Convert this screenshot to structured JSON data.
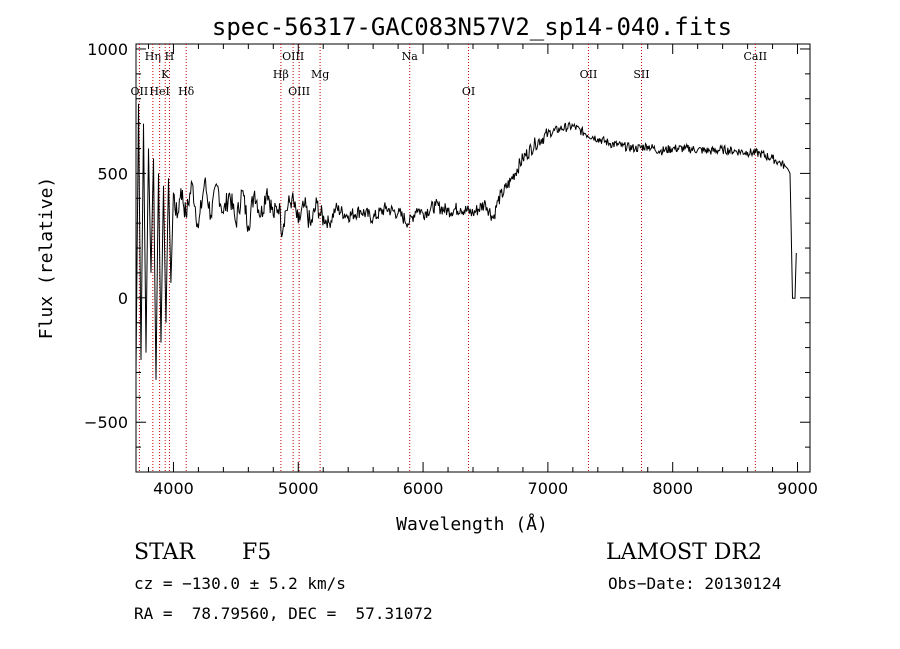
{
  "chart_data": {
    "type": "line",
    "title": "spec-56317-GAC083N57V2_sp14-040.fits",
    "xlabel": "Wavelength (Å)",
    "ylabel": "Flux (relative)",
    "xlim": [
      3700,
      9100
    ],
    "ylim": [
      -700,
      1020
    ],
    "xticks": [
      4000,
      5000,
      6000,
      7000,
      8000,
      9000
    ],
    "xtick_labels": [
      "4000",
      "5000",
      "6000",
      "7000",
      "8000",
      "9000"
    ],
    "yticks": [
      -500,
      0,
      500,
      1000
    ],
    "ytick_labels": [
      "−500",
      "0",
      "500",
      "1000"
    ],
    "series": [
      {
        "x": [
          3700,
          3720,
          3740,
          3760,
          3780,
          3800,
          3820,
          3840,
          3860,
          3880,
          3900,
          3920,
          3940,
          3960,
          3980,
          4000,
          4030,
          4060,
          4100,
          4150,
          4200,
          4250,
          4300,
          4350,
          4400,
          4450,
          4500,
          4550,
          4600,
          4650,
          4700,
          4750,
          4800,
          4850,
          4861,
          4900,
          4950,
          5000,
          5050,
          5100,
          5150,
          5180,
          5250,
          5300,
          5400,
          5500,
          5600,
          5700,
          5800,
          5890,
          5950,
          6000,
          6100,
          6200,
          6300,
          6400,
          6500,
          6563,
          6600,
          6700,
          6800,
          6900,
          7000,
          7100,
          7200,
          7300,
          7400,
          7500,
          7600,
          7700,
          7800,
          7900,
          8000,
          8100,
          8200,
          8300,
          8400,
          8500,
          8600,
          8700,
          8800,
          8850,
          8900,
          8920,
          8940,
          8960,
          8980,
          8990
        ],
        "values": [
          -300,
          780,
          -250,
          700,
          -220,
          600,
          100,
          560,
          -330,
          500,
          -180,
          450,
          -100,
          480,
          60,
          420,
          320,
          440,
          330,
          460,
          280,
          470,
          330,
          450,
          340,
          420,
          300,
          430,
          290,
          430,
          330,
          440,
          330,
          380,
          270,
          350,
          400,
          300,
          370,
          290,
          380,
          330,
          300,
          360,
          330,
          350,
          320,
          360,
          340,
          300,
          360,
          340,
          370,
          350,
          360,
          340,
          380,
          320,
          390,
          470,
          560,
          620,
          660,
          680,
          690,
          660,
          640,
          620,
          610,
          600,
          610,
          590,
          600,
          600,
          595,
          590,
          595,
          590,
          585,
          580,
          560,
          545,
          530,
          520,
          500,
          -2,
          -2,
          180
        ]
      }
    ],
    "lines": [
      {
        "label": "OII",
        "x": 3727,
        "row": 3
      },
      {
        "label": "Hη",
        "x": 3835,
        "row": 1
      },
      {
        "label": "HeI",
        "x": 3889,
        "row": 3
      },
      {
        "label": "K",
        "x": 3934,
        "row": 2
      },
      {
        "label": "H",
        "x": 3968,
        "row": 1
      },
      {
        "label": "Hδ",
        "x": 4102,
        "row": 3
      },
      {
        "label": "Hβ",
        "x": 4861,
        "row": 2
      },
      {
        "label": "OIII",
        "x": 4959,
        "row": 1
      },
      {
        "label": "OIII",
        "x": 5007,
        "row": 3
      },
      {
        "label": "Mg",
        "x": 5175,
        "row": 2
      },
      {
        "label": "Na",
        "x": 5893,
        "row": 1
      },
      {
        "label": "OI",
        "x": 6364,
        "row": 3
      },
      {
        "label": "OII",
        "x": 7325,
        "row": 2
      },
      {
        "label": "SII",
        "x": 7750,
        "row": 2
      },
      {
        "label": "CaII",
        "x": 8662,
        "row": 1
      }
    ],
    "line_color": "#000000",
    "marker_color": "#cc0000",
    "grid": false
  },
  "info": {
    "class_label": "STAR",
    "subclass_label": "F5",
    "survey": "LAMOST DR2",
    "cz": "cz = −130.0 ± 5.2 km/s",
    "obs_date": "Obs−Date: 20130124",
    "coords": "RA =  78.79560, DEC =  57.31072"
  }
}
